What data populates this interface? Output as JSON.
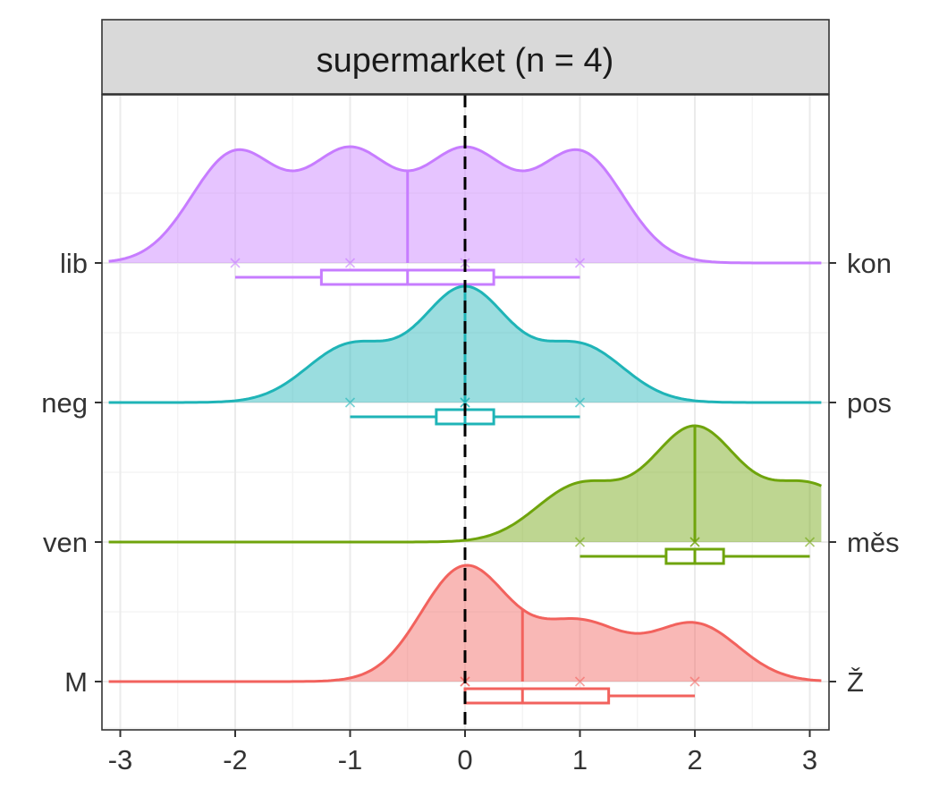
{
  "chart_data": {
    "type": "ridgeline",
    "title": "supermarket (n = 4)",
    "xlabel": "",
    "ylabel": "",
    "xlim": [
      -3.1,
      3.1
    ],
    "x_ticks": [
      -3,
      -2,
      -1,
      0,
      1,
      2,
      3
    ],
    "x_tick_labels": [
      "-3",
      "-2",
      "-1",
      "0",
      "1",
      "2",
      "3"
    ],
    "reference_line_x": 0,
    "grid": true,
    "legend": "none",
    "rows": [
      {
        "left_label": "lib",
        "right_label": "kon",
        "color": "#C77CFF",
        "points": [
          -2,
          -1,
          0,
          1
        ],
        "median": -0.5,
        "q1": -1.25,
        "q3": 0.25,
        "whisker_low": -2,
        "whisker_high": 1
      },
      {
        "left_label": "neg",
        "right_label": "pos",
        "color": "#1FB4B7",
        "points": [
          -1,
          0,
          0,
          1
        ],
        "median": 0,
        "q1": -0.25,
        "q3": 0.25,
        "whisker_low": -1,
        "whisker_high": 1
      },
      {
        "left_label": "ven",
        "right_label": "měs",
        "color": "#6FA40C",
        "points": [
          1,
          2,
          2,
          3
        ],
        "median": 2,
        "q1": 1.75,
        "q3": 2.25,
        "whisker_low": 1,
        "whisker_high": 3
      },
      {
        "left_label": "M",
        "right_label": "Ž",
        "color": "#F2625D",
        "points": [
          0,
          0,
          1,
          2
        ],
        "median": 0.5,
        "q1": 0,
        "q3": 1.25,
        "whisker_low": 0,
        "whisker_high": 2
      }
    ]
  }
}
